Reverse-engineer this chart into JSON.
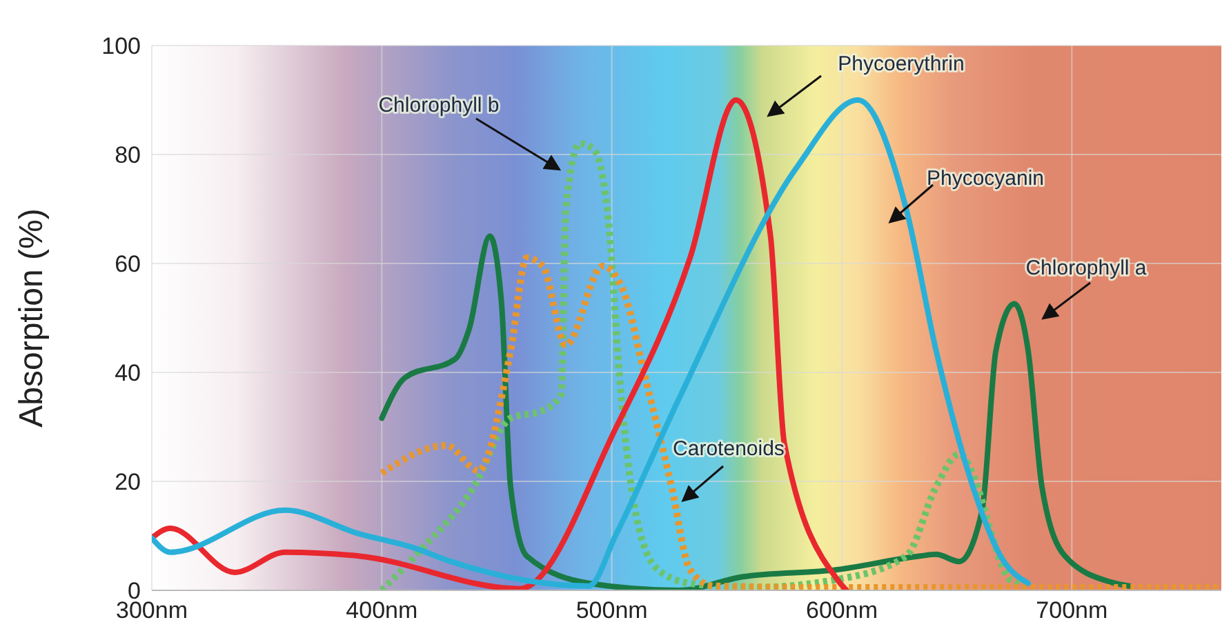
{
  "chart_data": {
    "type": "line",
    "ylabel": "Absorption (%)",
    "xlim": [
      300,
      765
    ],
    "xticks": [
      {
        "value": 300,
        "label": "300nm"
      },
      {
        "value": 400,
        "label": "400nm"
      },
      {
        "value": 500,
        "label": "500nm"
      },
      {
        "value": 600,
        "label": "600nm"
      },
      {
        "value": 700,
        "label": "700nm"
      }
    ],
    "ylim": [
      0,
      100
    ],
    "yticks": [
      0,
      20,
      40,
      60,
      80,
      100
    ],
    "grid": true,
    "marker": "none",
    "series": [
      {
        "name": "Chlorophyll a",
        "color": "#1a7a45",
        "line_style": "solid",
        "x": [
          400,
          410,
          432,
          438,
          447,
          452,
          456,
          463,
          490,
          529,
          557,
          598,
          634,
          641,
          651,
          661,
          667,
          675,
          681,
          687,
          697,
          717,
          725
        ],
        "values": [
          31.6,
          39,
          42.5,
          48,
          65,
          53,
          19,
          6.3,
          1.3,
          0,
          2.5,
          3.8,
          6.3,
          6.6,
          5.3,
          14.7,
          44,
          52.6,
          44,
          19,
          6.3,
          1.5,
          0.8
        ]
      },
      {
        "name": "Chlorophyll b",
        "color": "#6cc36a",
        "line_style": "dotted",
        "x": [
          400,
          416,
          440,
          456,
          470,
          478,
          480,
          486,
          492,
          498,
          504,
          510,
          520,
          534,
          560,
          598,
          628,
          641,
          651,
          659,
          665,
          673,
          681
        ],
        "values": [
          0,
          7,
          19,
          31.6,
          33,
          36,
          70,
          82,
          81,
          70,
          36,
          15,
          3.8,
          1.3,
          0.5,
          2,
          6.3,
          19,
          25,
          19,
          10.4,
          2,
          0.8
        ]
      },
      {
        "name": "Carotenoids",
        "color": "#e8962e",
        "line_style": "dotted",
        "x": [
          400,
          428,
          442,
          456,
          463,
          470,
          480,
          496,
          505,
          514,
          526,
          534,
          544,
          600,
          700,
          765
        ],
        "values": [
          21.5,
          26.6,
          22,
          44,
          61,
          59.5,
          45,
          59.5,
          55,
          40,
          19,
          3.8,
          0.8,
          0.5,
          0.5,
          0.5
        ]
      },
      {
        "name": "Phycoerythrin",
        "color": "#e8282e",
        "line_style": "solid",
        "x": [
          300,
          308,
          336,
          358,
          390,
          460,
          502,
          534,
          554,
          569,
          575,
          598,
          602
        ],
        "values": [
          9.6,
          11.4,
          3.3,
          7,
          6.3,
          0.3,
          30,
          61,
          90,
          65,
          27,
          2,
          0
        ]
      },
      {
        "name": "Phycocyanin",
        "color": "#2ab0d8",
        "line_style": "solid",
        "x": [
          300,
          308,
          358,
          390,
          414,
          430,
          490,
          502,
          529,
          581,
          607,
          628,
          641,
          657,
          669,
          681
        ],
        "values": [
          9.6,
          7,
          14.7,
          10.4,
          7.8,
          5.3,
          0.8,
          10.4,
          35,
          78,
          90,
          70,
          44,
          19,
          6.3,
          1.3
        ]
      }
    ]
  }
}
